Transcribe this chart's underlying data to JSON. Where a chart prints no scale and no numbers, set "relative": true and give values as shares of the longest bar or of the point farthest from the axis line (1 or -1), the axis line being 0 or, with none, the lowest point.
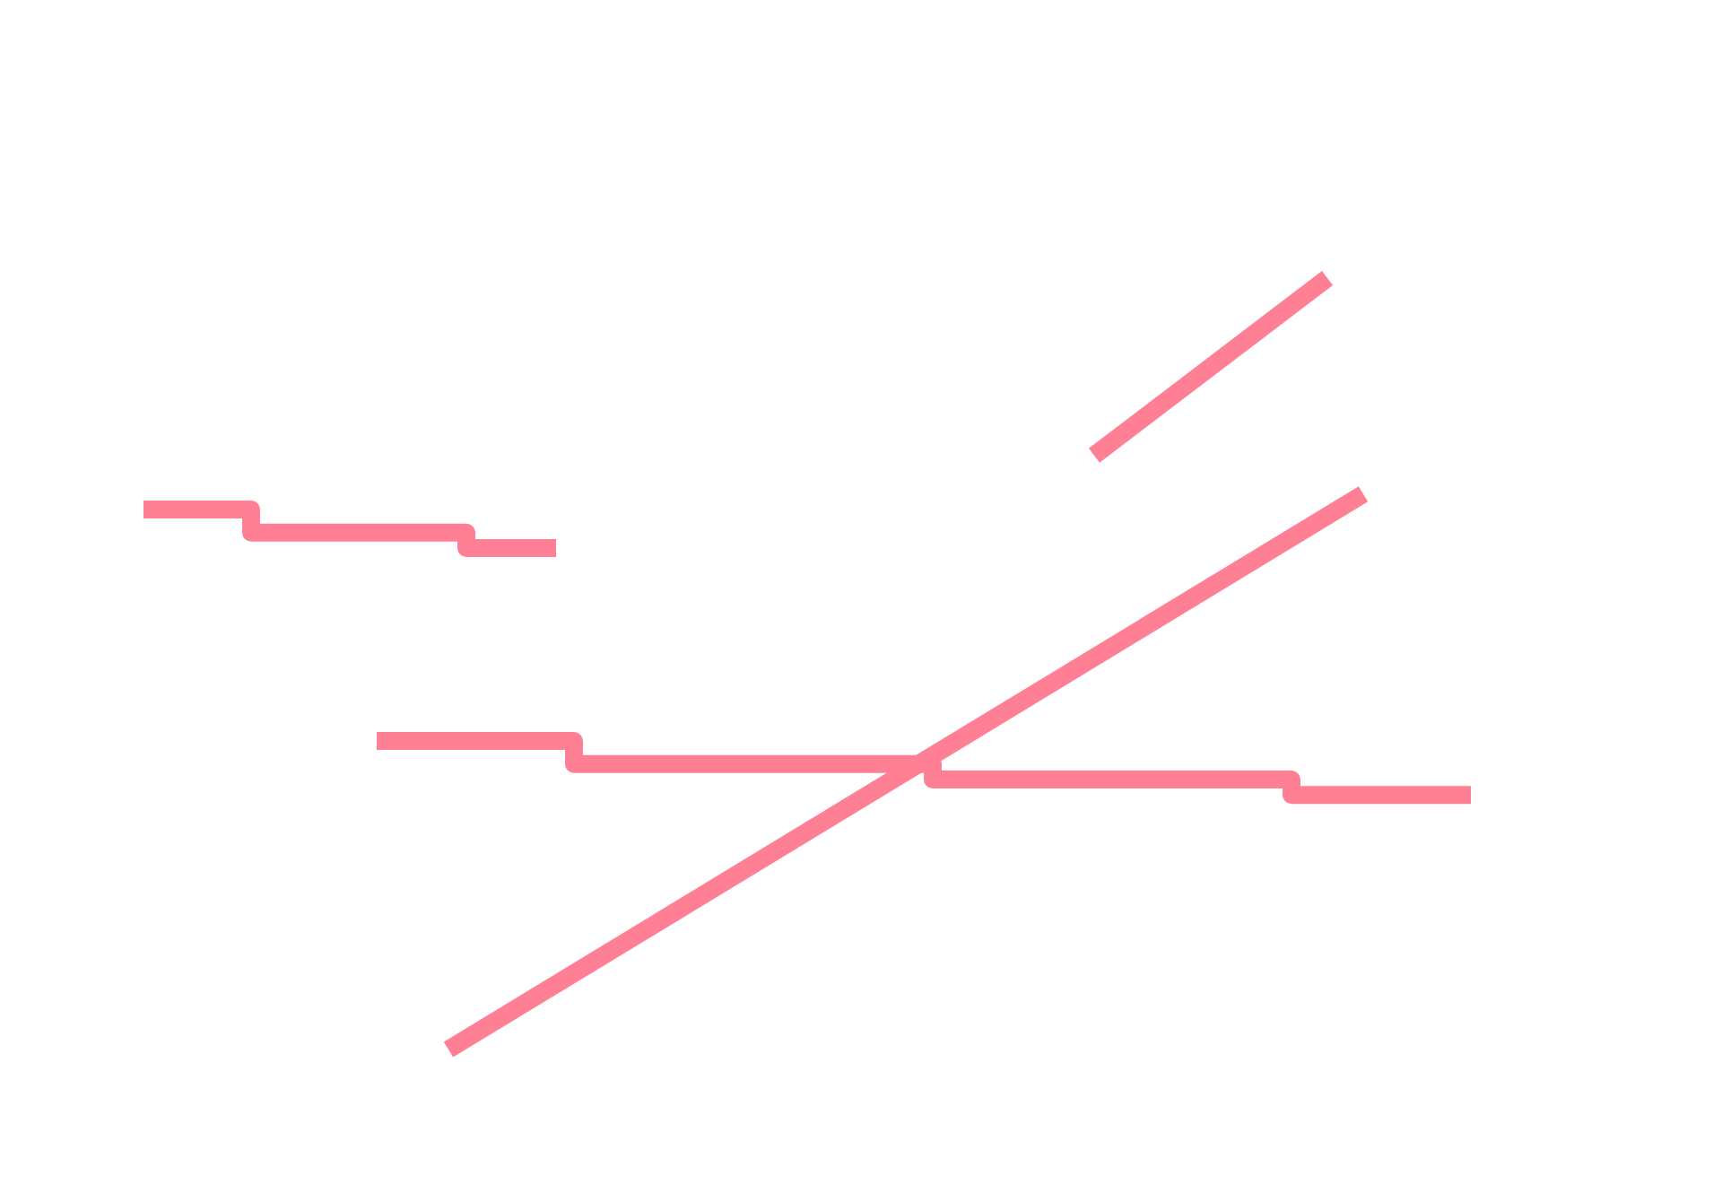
{
  "chart_data": {
    "type": "line",
    "relative": true,
    "categories": [
      null,
      null,
      null,
      null,
      null,
      null,
      null,
      null,
      null,
      null,
      null,
      null,
      null,
      null,
      null,
      null,
      null,
      null,
      null,
      null,
      null,
      null,
      null,
      null,
      null,
      null,
      null,
      null,
      null,
      null,
      null,
      null,
      null,
      null,
      null,
      null,
      null,
      null,
      null,
      null,
      null,
      null,
      null,
      null,
      null,
      null,
      null,
      null,
      null,
      null,
      null,
      null,
      null,
      null,
      null,
      null,
      null,
      null,
      null,
      null,
      null,
      null,
      null,
      null,
      null,
      null,
      null,
      null,
      null,
      null,
      null,
      null,
      null,
      null,
      null
    ],
    "series": [
      {
        "type": "step",
        "color": "#ff8095",
        "values": [
          0.7,
          null,
          null,
          null,
          null,
          null,
          0.67,
          null,
          null,
          null,
          null,
          null,
          null,
          null,
          null,
          null,
          null,
          null,
          0.65,
          null,
          null,
          null,
          null,
          0.65,
          null,
          null,
          null,
          null,
          null,
          null,
          null,
          null,
          null,
          null,
          null,
          null,
          null,
          null,
          null,
          null,
          null,
          null,
          null,
          null,
          null,
          null,
          null,
          null,
          null,
          null,
          null,
          null,
          null,
          null,
          null,
          null,
          null,
          null,
          null,
          null,
          null,
          null,
          null,
          null,
          null,
          null,
          null,
          null,
          null,
          null,
          null,
          null,
          null,
          null,
          null
        ]
      },
      {
        "type": "step",
        "color": "#ff8095",
        "values": [
          null,
          null,
          null,
          null,
          null,
          null,
          null,
          null,
          null,
          null,
          null,
          null,
          null,
          0.4,
          null,
          null,
          null,
          null,
          null,
          null,
          null,
          null,
          null,
          null,
          0.37,
          null,
          null,
          null,
          null,
          null,
          null,
          null,
          null,
          null,
          null,
          null,
          null,
          null,
          null,
          null,
          null,
          null,
          null,
          null,
          0.35,
          null,
          null,
          null,
          null,
          null,
          null,
          null,
          null,
          null,
          null,
          null,
          null,
          null,
          null,
          null,
          null,
          null,
          null,
          null,
          0.33,
          null,
          null,
          null,
          null,
          null,
          null,
          null,
          null,
          null,
          0.33
        ]
      },
      {
        "type": "line",
        "color": "#ff8095",
        "values": [
          null,
          null,
          null,
          null,
          null,
          null,
          null,
          null,
          null,
          null,
          null,
          null,
          null,
          null,
          null,
          null,
          null,
          0,
          null,
          null,
          null,
          null,
          null,
          null,
          null,
          null,
          null,
          null,
          null,
          null,
          null,
          null,
          null,
          null,
          null,
          null,
          null,
          null,
          null,
          null,
          null,
          null,
          null,
          null,
          null,
          null,
          null,
          null,
          null,
          null,
          null,
          null,
          null,
          null,
          null,
          null,
          null,
          null,
          null,
          null,
          null,
          null,
          null,
          null,
          null,
          null,
          null,
          null,
          0.72,
          null,
          null,
          null,
          null,
          null,
          null
        ]
      },
      {
        "type": "line",
        "color": "#ff8095",
        "values": [
          null,
          null,
          null,
          null,
          null,
          null,
          null,
          null,
          null,
          null,
          null,
          null,
          null,
          null,
          null,
          null,
          null,
          null,
          null,
          null,
          null,
          null,
          null,
          null,
          null,
          null,
          null,
          null,
          null,
          null,
          null,
          null,
          null,
          null,
          null,
          null,
          null,
          null,
          null,
          null,
          null,
          null,
          null,
          null,
          null,
          null,
          null,
          null,
          null,
          null,
          null,
          null,
          null,
          0.77,
          null,
          null,
          null,
          null,
          null,
          null,
          null,
          null,
          null,
          null,
          null,
          null,
          1,
          null,
          null,
          null,
          null,
          null,
          null,
          null,
          null
        ]
      }
    ]
  }
}
